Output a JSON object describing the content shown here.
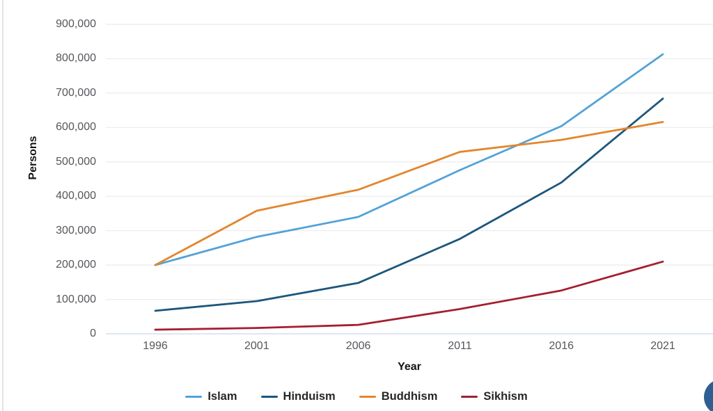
{
  "chart_data": {
    "type": "line",
    "xlabel": "Year",
    "ylabel": "Persons",
    "x": [
      "1996",
      "2001",
      "2006",
      "2011",
      "2016",
      "2021"
    ],
    "yticks": [
      "0",
      "100,000",
      "200,000",
      "300,000",
      "400,000",
      "500,000",
      "600,000",
      "700,000",
      "800,000",
      "900,000"
    ],
    "ylim": [
      0,
      900000
    ],
    "ytick_step": 100000,
    "grid": true,
    "legend_position": "bottom",
    "gridline_color": "#ebebeb",
    "axis_baseline_color": "#c9d7ee",
    "series": [
      {
        "name": "Islam",
        "color": "#52a2d8",
        "values": [
          200000,
          282000,
          340000,
          476000,
          604000,
          813000
        ]
      },
      {
        "name": "Hinduism",
        "color": "#1d567c",
        "values": [
          67000,
          95000,
          148000,
          276000,
          440000,
          684000
        ]
      },
      {
        "name": "Buddhism",
        "color": "#e2862c",
        "values": [
          200000,
          358000,
          419000,
          529000,
          564000,
          616000
        ]
      },
      {
        "name": "Sikhism",
        "color": "#a41f2f",
        "values": [
          12000,
          17000,
          26000,
          72000,
          126000,
          210000
        ]
      }
    ]
  },
  "ui": {
    "floating_button": {
      "color": "#2f5e92"
    }
  }
}
